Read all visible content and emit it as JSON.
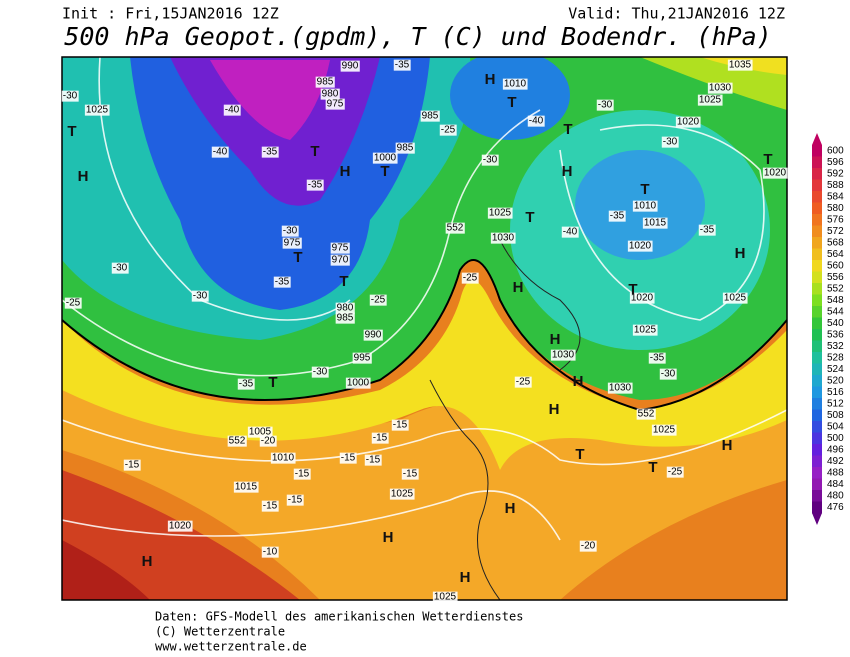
{
  "header": {
    "init": "Init : Fri,15JAN2016 12Z",
    "valid": "Valid: Thu,21JAN2016 12Z",
    "title": "500 hPa Geopot.(gpdm), T (C) und Bodendr. (hPa)"
  },
  "legend": {
    "labels": [
      600,
      596,
      592,
      588,
      584,
      580,
      576,
      572,
      568,
      564,
      560,
      556,
      552,
      548,
      544,
      540,
      536,
      532,
      528,
      524,
      520,
      516,
      512,
      508,
      504,
      500,
      496,
      492,
      488,
      484,
      480,
      476
    ]
  },
  "map": {
    "labels": [
      "1035",
      "1030",
      "1025",
      "1010",
      "990",
      "985",
      "980",
      "975",
      "985",
      "985",
      "1000",
      "1020",
      "-30",
      "-40",
      "-35",
      "-30",
      "1025",
      "-40",
      "-40",
      "-35",
      "-35",
      "-25",
      "-30",
      "-30",
      "1020",
      "1010",
      "1015",
      "-35",
      "-40",
      "1020",
      "-35",
      "1025",
      "1030",
      "552",
      "975",
      "975",
      "970",
      "-30",
      "-35",
      "-30",
      "-25",
      "-30",
      "-25",
      "-25",
      "980",
      "985",
      "990",
      "1020",
      "1025",
      "1025",
      "1030",
      "-35",
      "995",
      "-30",
      "-35",
      "1000",
      "-25",
      "1030",
      "-30",
      "552",
      "1025",
      "1005",
      "552",
      "-20",
      "-15",
      "-15",
      "1010",
      "-15",
      "-15",
      "-15",
      "-15",
      "-15",
      "-25",
      "1015",
      "-15",
      "-15",
      "1025",
      "1020",
      "-20",
      "-10",
      "1025"
    ],
    "markers": [
      "H",
      "T",
      "T",
      "H",
      "T",
      "H",
      "T",
      "T",
      "H",
      "T",
      "T",
      "T",
      "H",
      "T",
      "T",
      "H",
      "T",
      "H",
      "T",
      "H",
      "H",
      "T",
      "T",
      "H",
      "H",
      "H",
      "H",
      "H"
    ]
  },
  "footer": {
    "lines": [
      "Daten: GFS-Modell des amerikanischen Wetterdienstes",
      "(C) Wetterzentrale",
      "www.wetterzentrale.de"
    ]
  }
}
